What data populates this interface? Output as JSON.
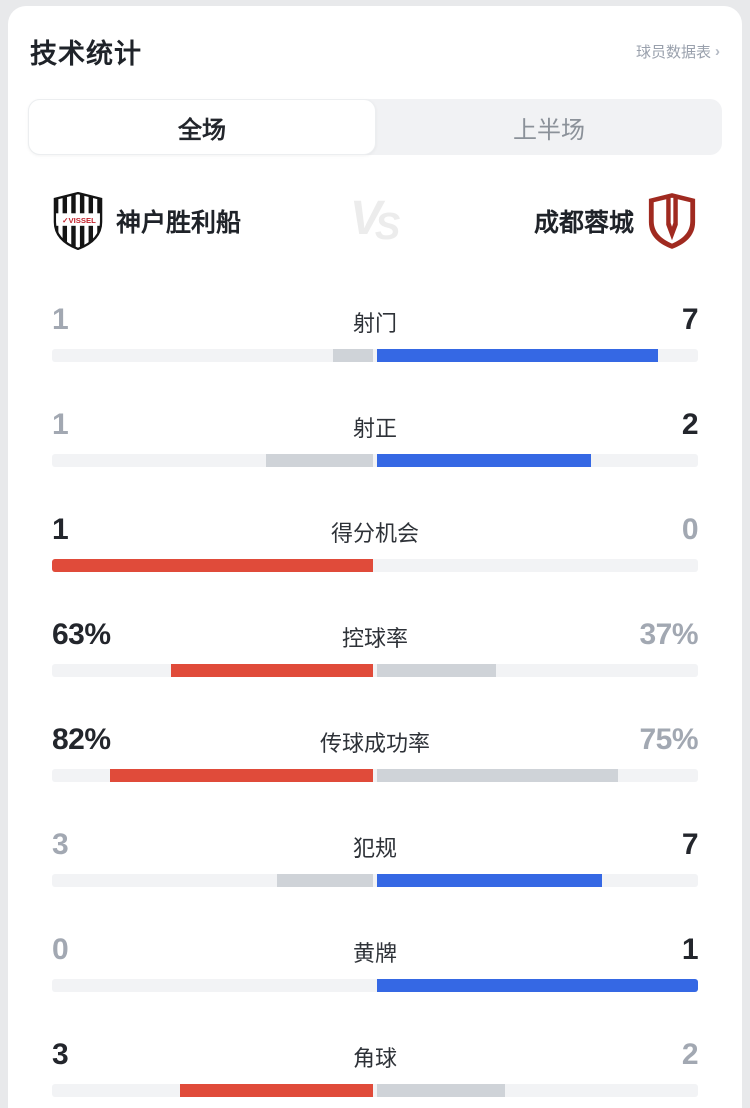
{
  "header": {
    "title": "技术统计",
    "link_label": "球员数据表",
    "link_chevron": "›"
  },
  "tabs": {
    "items": [
      {
        "label": "全场",
        "active": true
      },
      {
        "label": "上半场",
        "active": false
      }
    ]
  },
  "teams": {
    "home": {
      "name": "神户胜利船",
      "logo_icon": "vissel-kobe-crest",
      "crest_text": "VISSEL"
    },
    "away": {
      "name": "成都蓉城",
      "logo_icon": "chengdu-rongcheng-crest"
    },
    "vs_v": "V",
    "vs_s": "S"
  },
  "colors": {
    "accent_red": "#e04b3a",
    "accent_blue": "#3568e4",
    "bar_gray": "#cfd3d8",
    "bar_track": "#f2f3f5",
    "winner_text": "#23262c",
    "loser_text": "#a2a8b2",
    "vissel_black": "#141414",
    "vissel_red": "#c2202a",
    "chengdu_red": "#a02a20"
  },
  "stats": {
    "rows": [
      {
        "label": "射门",
        "home": "1",
        "away": "7",
        "home_fill": 12.5,
        "away_fill": 87.5,
        "home_style": "gray",
        "away_style": "blue",
        "home_emph": false,
        "away_emph": true
      },
      {
        "label": "射正",
        "home": "1",
        "away": "2",
        "home_fill": 33.3,
        "away_fill": 66.7,
        "home_style": "gray",
        "away_style": "blue",
        "home_emph": false,
        "away_emph": true
      },
      {
        "label": "得分机会",
        "home": "1",
        "away": "0",
        "home_fill": 100,
        "away_fill": 0,
        "home_style": "red",
        "away_style": "gray",
        "home_emph": true,
        "away_emph": false
      },
      {
        "label": "控球率",
        "home": "63%",
        "away": "37%",
        "home_fill": 63,
        "away_fill": 37,
        "home_style": "red",
        "away_style": "gray",
        "home_emph": true,
        "away_emph": false
      },
      {
        "label": "传球成功率",
        "home": "82%",
        "away": "75%",
        "home_fill": 82,
        "away_fill": 75,
        "home_style": "red",
        "away_style": "gray",
        "home_emph": true,
        "away_emph": false
      },
      {
        "label": "犯规",
        "home": "3",
        "away": "7",
        "home_fill": 30,
        "away_fill": 70,
        "home_style": "gray",
        "away_style": "blue",
        "home_emph": false,
        "away_emph": true
      },
      {
        "label": "黄牌",
        "home": "0",
        "away": "1",
        "home_fill": 0,
        "away_fill": 100,
        "home_style": "gray",
        "away_style": "blue",
        "home_emph": false,
        "away_emph": true
      },
      {
        "label": "角球",
        "home": "3",
        "away": "2",
        "home_fill": 60,
        "away_fill": 40,
        "home_style": "red",
        "away_style": "gray",
        "home_emph": true,
        "away_emph": false
      }
    ]
  }
}
